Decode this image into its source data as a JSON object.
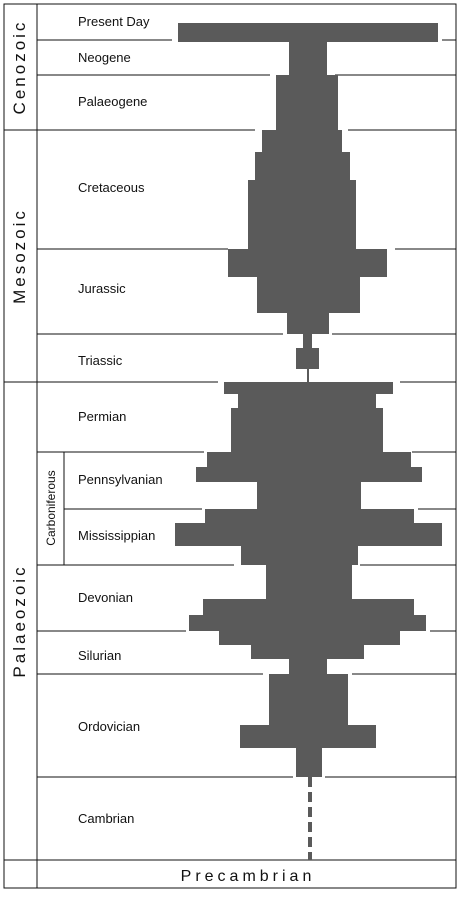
{
  "title": "",
  "eras": [
    {
      "id": "cenozoic",
      "label": "Cenozoic"
    },
    {
      "id": "mesozoic",
      "label": "Mesozoic"
    },
    {
      "id": "palaeozoic",
      "label": "Palaeozoic"
    }
  ],
  "periods": [
    {
      "id": "present-day",
      "label": "Present Day",
      "era": "cenozoic"
    },
    {
      "id": "neogene",
      "label": "Neogene",
      "era": "cenozoic"
    },
    {
      "id": "palaeogene",
      "label": "Palaeogene",
      "era": "cenozoic"
    },
    {
      "id": "cretaceous",
      "label": "Cretaceous",
      "era": "mesozoic"
    },
    {
      "id": "jurassic",
      "label": "Jurassic",
      "era": "mesozoic"
    },
    {
      "id": "triassic",
      "label": "Triassic",
      "era": "mesozoic"
    },
    {
      "id": "permian",
      "label": "Permian",
      "era": "palaeozoic"
    },
    {
      "id": "pennsylvanian",
      "label": "Pennsylvanian",
      "era": "palaeozoic",
      "group": "carboniferous"
    },
    {
      "id": "mississippian",
      "label": "Mississippian",
      "era": "palaeozoic",
      "group": "carboniferous"
    },
    {
      "id": "devonian",
      "label": "Devonian",
      "era": "palaeozoic"
    },
    {
      "id": "silurian",
      "label": "Silurian",
      "era": "palaeozoic"
    },
    {
      "id": "ordovician",
      "label": "Ordovician",
      "era": "palaeozoic"
    },
    {
      "id": "cambrian",
      "label": "Cambrian",
      "era": "palaeozoic"
    }
  ],
  "carboniferous_label": "Carboniferous",
  "precambrian_label": "Precambrian",
  "colors": {
    "bar": "#5a5a5a",
    "line": "#111111",
    "background": "#ffffff"
  }
}
